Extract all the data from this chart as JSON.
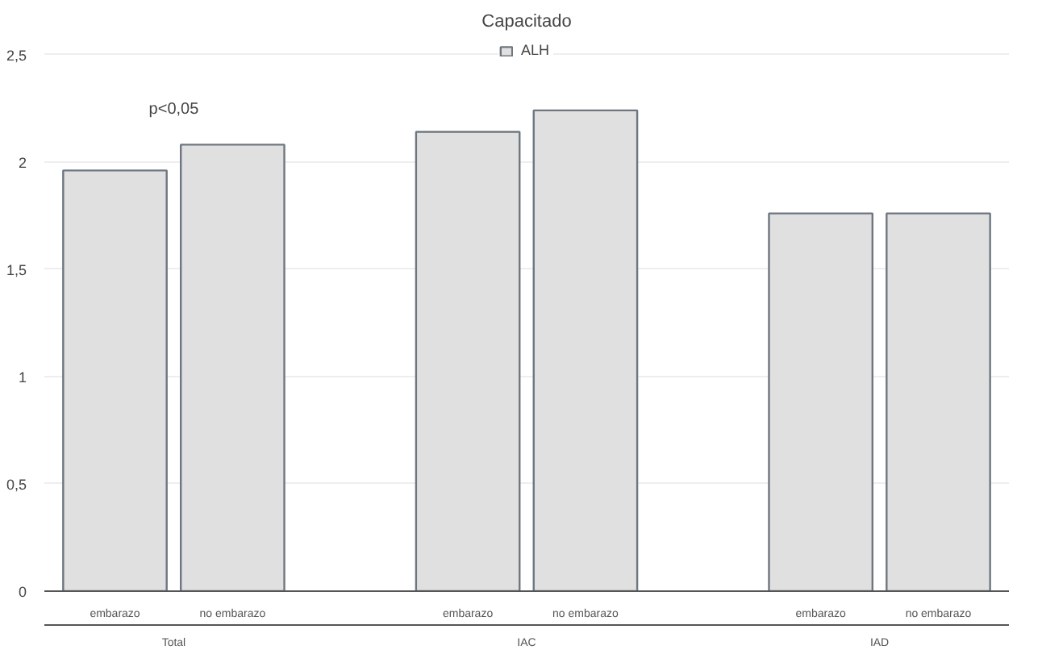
{
  "chart_data": {
    "type": "bar",
    "title": "Capacitado",
    "categories": [
      "embarazo",
      "no embarazo",
      "embarazo",
      "no embarazo",
      "embarazo",
      "no embarazo"
    ],
    "series": [
      {
        "name": "ALH",
        "color": "#e0e0e0",
        "values": [
          1.96,
          2.08,
          2.14,
          2.24,
          1.76,
          1.76
        ]
      }
    ],
    "ylim": [
      0,
      2.57
    ],
    "yticks": [
      0,
      {
        "value": 0.5,
        "label": "0,5"
      },
      1,
      {
        "value": 1.5,
        "label": "1,5"
      },
      2,
      {
        "value": 2.5,
        "label": "2,5"
      }
    ],
    "annotations": [
      "p<0,05",
      "Total",
      "IAC",
      "IAD"
    ],
    "grid": "y",
    "legend": "top"
  }
}
